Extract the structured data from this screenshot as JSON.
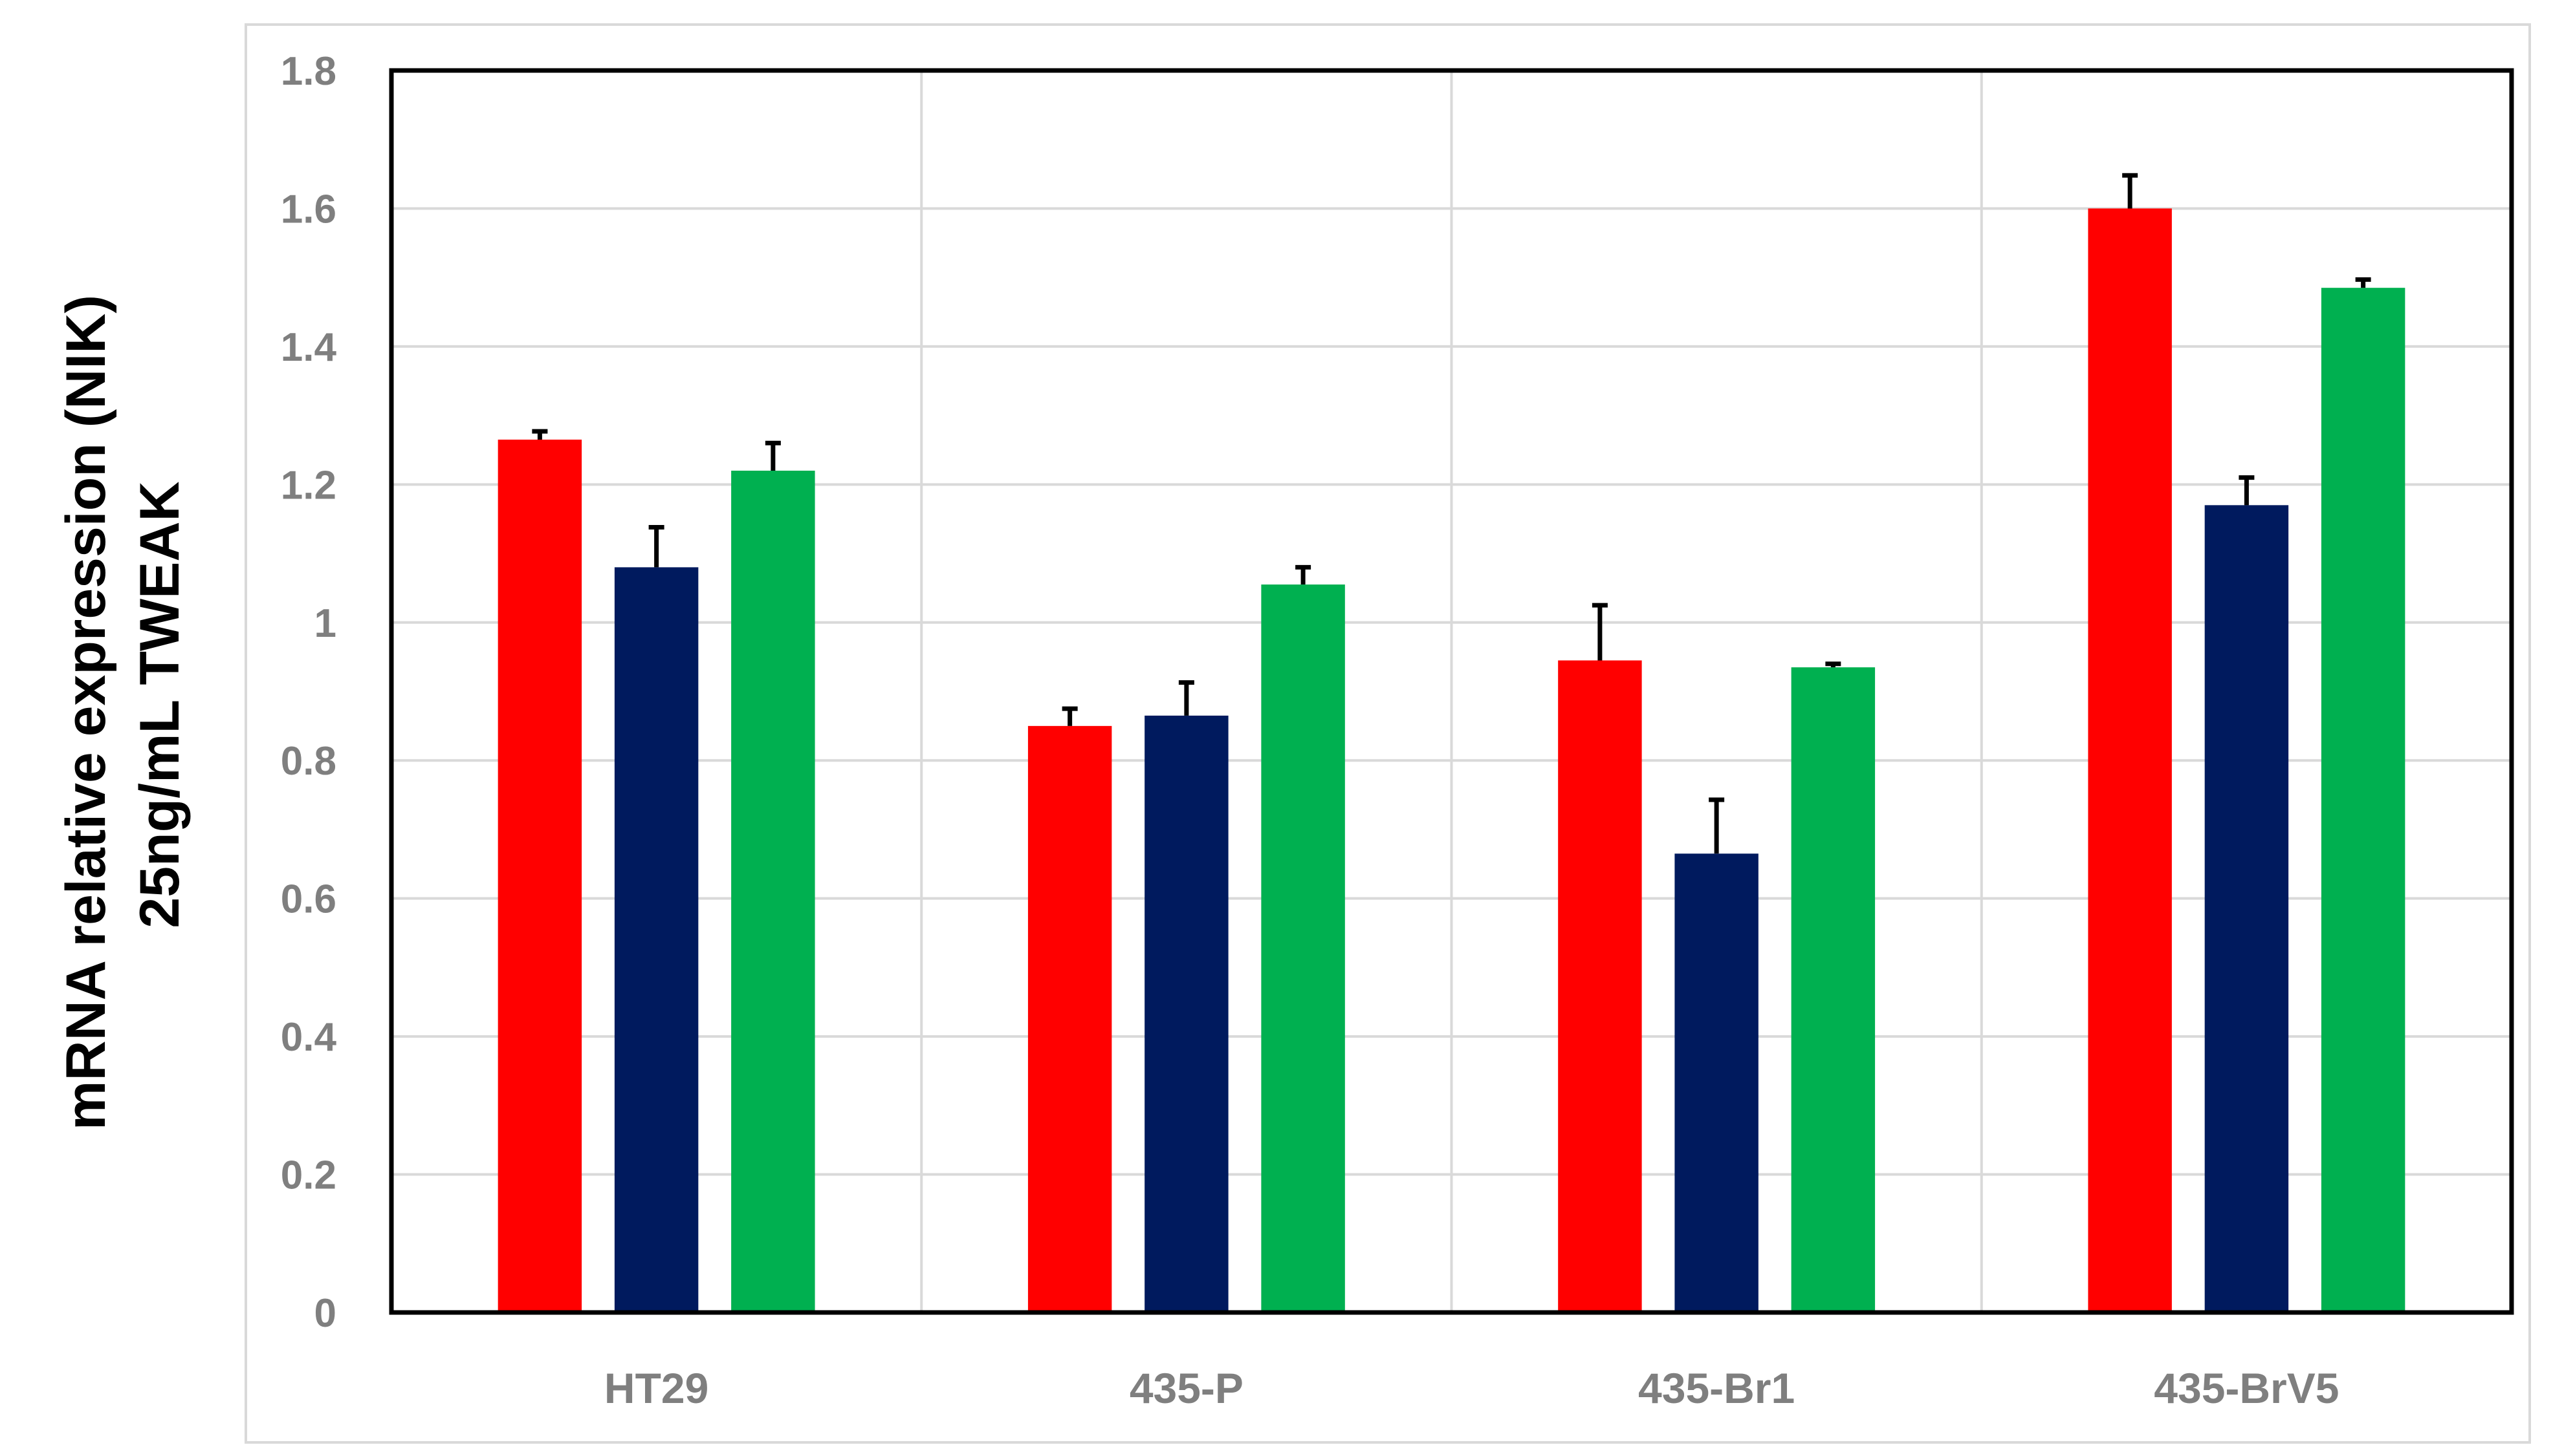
{
  "chart_data": {
    "type": "bar",
    "title": "",
    "xlabel": "",
    "ylabel_lines": [
      "mRNA relative expression (NIK)",
      "25ng/mL TWEAK"
    ],
    "categories": [
      "HT29",
      "435-P",
      "435-Br1",
      "435-BrV5"
    ],
    "ylim": [
      0,
      1.8
    ],
    "yticks": [
      0,
      0.2,
      0.4,
      0.6,
      0.8,
      1,
      1.2,
      1.4,
      1.6,
      1.8
    ],
    "ytick_labels": [
      "0",
      "0.2",
      "0.4",
      "0.6",
      "0.8",
      "1",
      "1.2",
      "1.4",
      "1.6",
      "1.8"
    ],
    "grid": true,
    "legend": "none",
    "series": [
      {
        "color": "#ff0000",
        "values": [
          1.265,
          0.85,
          0.945,
          1.6
        ],
        "errors": [
          0.012,
          0.025,
          0.08,
          0.048
        ]
      },
      {
        "color": "#001a5e",
        "values": [
          1.08,
          0.865,
          0.665,
          1.17
        ],
        "errors": [
          0.058,
          0.048,
          0.078,
          0.04
        ]
      },
      {
        "color": "#00b050",
        "values": [
          1.22,
          1.055,
          0.935,
          1.485
        ],
        "errors": [
          0.04,
          0.025,
          0.005,
          0.012
        ]
      }
    ]
  }
}
